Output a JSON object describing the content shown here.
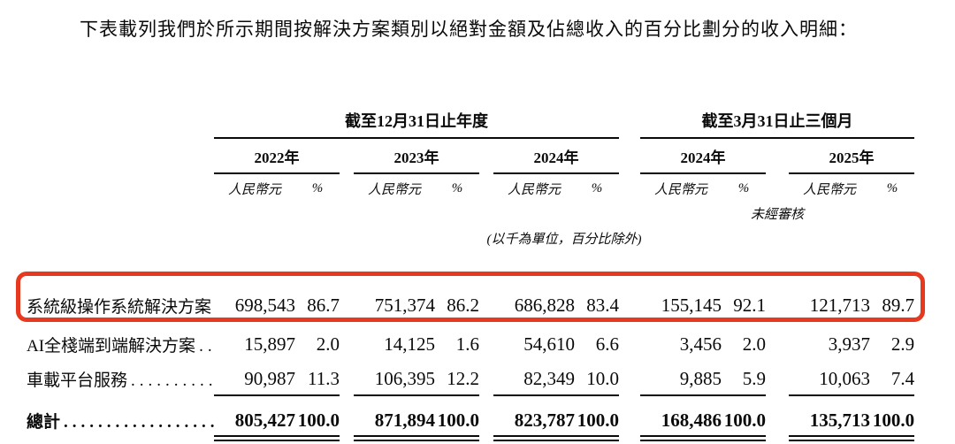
{
  "intro": "下表載列我們於所示期間按解決方案類別以絕對金額及佔總收入的百分比劃分的收入明細：",
  "table": {
    "period_headers": [
      "截至12月31日止年度",
      "截至3月31日止三個月"
    ],
    "year_headers": [
      "2022年",
      "2023年",
      "2024年",
      "2024年",
      "2025年"
    ],
    "currency_label": "人民幣元",
    "percent_label": "%",
    "unaudited_label": "未經審核",
    "unit_note": "(以千為單位，百分比除外)",
    "rows": [
      {
        "label": "系統級操作系統解決方案",
        "leader": "...",
        "values": [
          "698,543",
          "86.7",
          "751,374",
          "86.2",
          "686,828",
          "83.4",
          "155,145",
          "92.1",
          "121,713",
          "89.7"
        ],
        "highlighted": true
      },
      {
        "label": "AI全棧端到端解決方案",
        "leader": ".....",
        "values": [
          "15,897",
          "2.0",
          "14,125",
          "1.6",
          "54,610",
          "6.6",
          "3,456",
          "2.0",
          "3,937",
          "2.9"
        ],
        "highlighted": false
      },
      {
        "label": "車載平台服務",
        "leader": "............",
        "values": [
          "90,987",
          "11.3",
          "106,395",
          "12.2",
          "82,349",
          "10.0",
          "9,885",
          "5.9",
          "10,063",
          "7.4"
        ],
        "highlighted": false
      }
    ],
    "total_row": {
      "label": "總計",
      "leader": "...................",
      "values": [
        "805,427",
        "100.0",
        "871,894",
        "100.0",
        "823,787",
        "100.0",
        "168,486",
        "100.0",
        "135,713",
        "100.0"
      ]
    }
  },
  "colors": {
    "highlight": "#e6391f",
    "text": "#0a0a0a"
  }
}
